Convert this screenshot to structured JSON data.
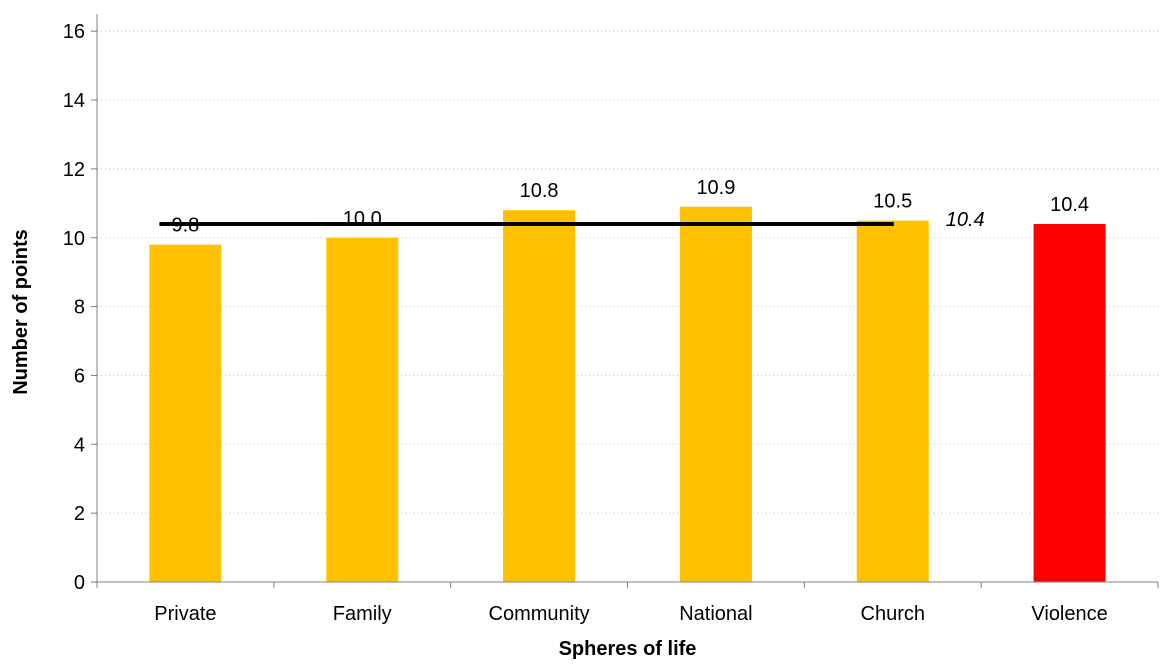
{
  "chart_data": {
    "type": "bar",
    "title": "",
    "xlabel": "Spheres of life",
    "ylabel": "Number of points",
    "categories": [
      "Private",
      "Family",
      "Community",
      "National",
      "Church",
      "Violence"
    ],
    "values": [
      9.8,
      10.0,
      10.8,
      10.9,
      10.5,
      10.4
    ],
    "value_labels": [
      "9.8",
      "10.0",
      "10.8",
      "10.9",
      "10.5",
      "10.4"
    ],
    "colors": [
      "#FFC000",
      "#FFC000",
      "#FFC000",
      "#FFC000",
      "#FFC000",
      "#FF0000"
    ],
    "ylim": [
      0,
      16.5
    ],
    "yticks": [
      0,
      2,
      4,
      6,
      8,
      10,
      12,
      14,
      16
    ],
    "grid": true,
    "legend": "none",
    "average_line": {
      "value": 10.4,
      "label": "10.4",
      "from_category": 0,
      "to_category": 4,
      "color": "#000000"
    }
  }
}
